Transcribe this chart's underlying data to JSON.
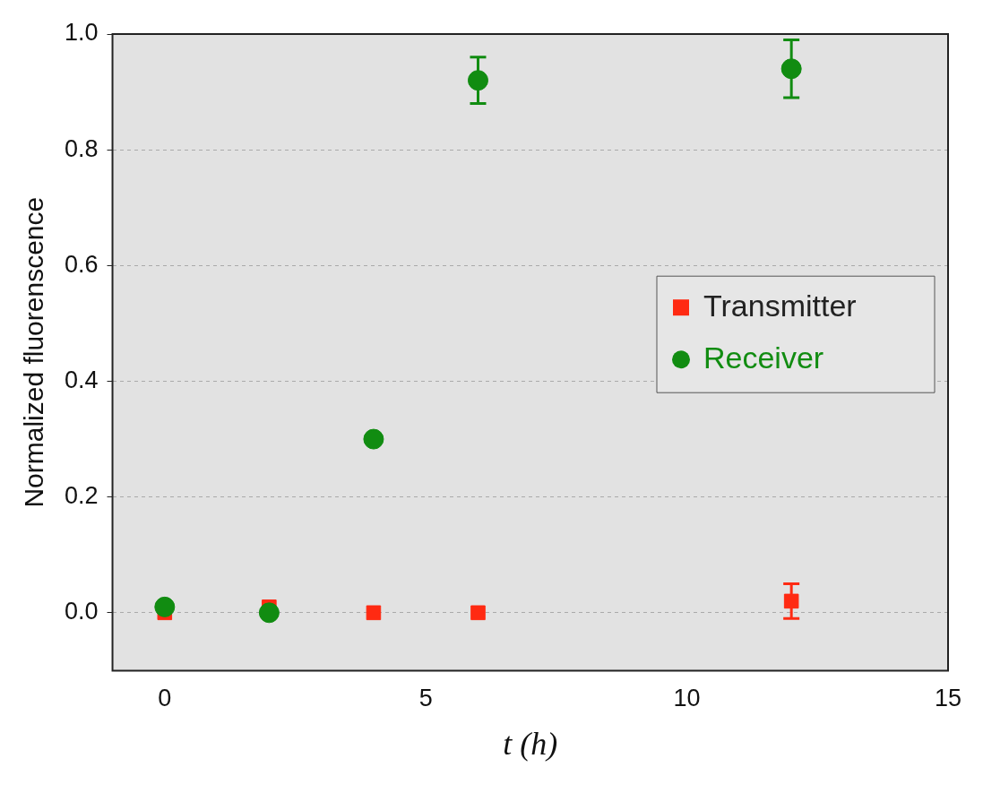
{
  "chart_data": {
    "type": "scatter",
    "xlabel": "t (h)",
    "ylabel": "Normalized fluorenscence",
    "series": [
      {
        "name": "Transmitter",
        "color": "#ff2a12",
        "marker": "square",
        "x": [
          0,
          2,
          4,
          6,
          12
        ],
        "values": [
          0,
          0.01,
          0,
          0,
          0.02
        ],
        "errors": [
          null,
          null,
          null,
          null,
          0.03
        ]
      },
      {
        "name": "Receiver",
        "color": "#118c11",
        "marker": "circle",
        "x": [
          0,
          2,
          4,
          6,
          12
        ],
        "values": [
          0.01,
          0,
          0.3,
          0.92,
          0.94
        ],
        "errors": [
          null,
          null,
          null,
          0.04,
          0.05
        ]
      }
    ],
    "xlim": [
      -1,
      15
    ],
    "xticks": [
      0,
      5,
      10,
      15
    ],
    "ylim": [
      -0.1,
      1.0
    ],
    "yticks": [
      {
        "value": 0,
        "label": "0.0"
      },
      {
        "value": 0.2,
        "label": "0.2"
      },
      {
        "value": 0.4,
        "label": "0.4"
      },
      {
        "value": 0.6,
        "label": "0.6"
      },
      {
        "value": 0.8,
        "label": "0.8"
      },
      {
        "value": 1.0,
        "label": "1.0"
      }
    ],
    "grid": "y",
    "legend": "right"
  }
}
